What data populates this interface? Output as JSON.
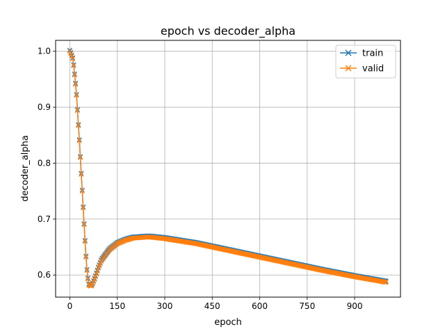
{
  "chart_data": {
    "type": "line",
    "title": "epoch vs decoder_alpha",
    "xlabel": "epoch",
    "ylabel": "decoder_alpha",
    "xlim": [
      -45,
      1045
    ],
    "ylim": [
      0.5605,
      1.0195
    ],
    "xticks": [
      0,
      150,
      300,
      450,
      600,
      750,
      900
    ],
    "yticks": [
      0.6,
      0.7,
      0.8,
      0.9,
      1.0
    ],
    "xtick_labels": [
      "0",
      "150",
      "300",
      "450",
      "600",
      "750",
      "900"
    ],
    "ytick_labels": [
      "0.6",
      "0.7",
      "0.8",
      "0.9",
      "1.0"
    ],
    "grid": true,
    "legend_position": "top-right",
    "marker": "x",
    "n_epochs": 1000,
    "key_points": [
      [
        0,
        1.0
      ],
      [
        10,
        0.985
      ],
      [
        20,
        0.93
      ],
      [
        30,
        0.84
      ],
      [
        40,
        0.74
      ],
      [
        50,
        0.64
      ],
      [
        55,
        0.6
      ],
      [
        60,
        0.582
      ],
      [
        65,
        0.58
      ],
      [
        70,
        0.581
      ],
      [
        80,
        0.595
      ],
      [
        90,
        0.612
      ],
      [
        100,
        0.626
      ],
      [
        125,
        0.645
      ],
      [
        150,
        0.656
      ],
      [
        175,
        0.662
      ],
      [
        200,
        0.666
      ],
      [
        250,
        0.668
      ],
      [
        300,
        0.665
      ],
      [
        400,
        0.656
      ],
      [
        500,
        0.644
      ],
      [
        600,
        0.632
      ],
      [
        700,
        0.62
      ],
      [
        800,
        0.608
      ],
      [
        900,
        0.597
      ],
      [
        1000,
        0.587
      ]
    ],
    "series": [
      {
        "name": "train",
        "color": "#1f77b4",
        "offset": 0.002
      },
      {
        "name": "valid",
        "color": "#ff7f0e",
        "offset": 0.0
      }
    ]
  }
}
